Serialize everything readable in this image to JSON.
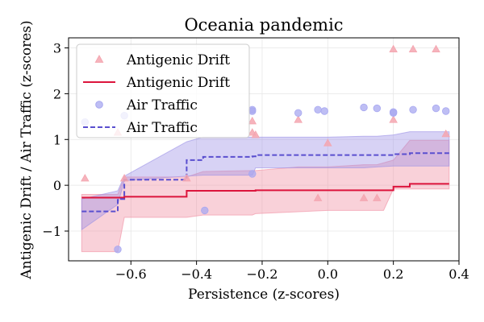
{
  "chart_data": {
    "type": "line",
    "title": "Oceania pandemic",
    "xlabel": "Persistence (z-scores)",
    "ylabel": "Antigenic Drift / Air Traffic (z-scores)",
    "xlim": [
      -0.79,
      0.4
    ],
    "ylim": [
      -1.65,
      3.22
    ],
    "xticks": [
      -0.6,
      -0.4,
      -0.2,
      0.0,
      0.2,
      0.4
    ],
    "xtick_labels": [
      "−0.6",
      "−0.4",
      "−0.2",
      "0.0",
      "0.2",
      "0.4"
    ],
    "yticks": [
      -1,
      0,
      1,
      2,
      3
    ],
    "ytick_labels": [
      "−1",
      "0",
      "1",
      "2",
      "3"
    ],
    "grid": true,
    "legend_position": "top-left",
    "legend": [
      {
        "label": "Antigenic Drift",
        "kind": "scatter-triangle",
        "series": "drift"
      },
      {
        "label": "Antigenic Drift",
        "kind": "line-solid",
        "series": "drift"
      },
      {
        "label": "Air Traffic",
        "kind": "scatter-circle",
        "series": "air"
      },
      {
        "label": "Air Traffic",
        "kind": "line-dashed",
        "series": "air"
      }
    ],
    "series": [
      {
        "name": "Antigenic Drift",
        "key": "drift",
        "color": "#dc143c",
        "marker_color": "#f4a6b0",
        "band_color": "#f08ca0",
        "points": [
          [
            -0.74,
            0.15
          ],
          [
            -0.64,
            1.15
          ],
          [
            -0.62,
            0.15
          ],
          [
            -0.43,
            0.15
          ],
          [
            -0.23,
            1.4
          ],
          [
            -0.23,
            1.15
          ],
          [
            -0.22,
            1.1
          ],
          [
            -0.09,
            1.43
          ],
          [
            -0.03,
            -0.28
          ],
          [
            0.0,
            0.92
          ],
          [
            0.11,
            -0.28
          ],
          [
            0.15,
            -0.28
          ],
          [
            0.2,
            2.97
          ],
          [
            0.2,
            1.43
          ],
          [
            0.26,
            2.97
          ],
          [
            0.33,
            2.97
          ],
          [
            0.36,
            1.12
          ]
        ],
        "fit": [
          [
            -0.75,
            -0.27
          ],
          [
            -0.64,
            -0.27
          ],
          [
            -0.62,
            -0.25
          ],
          [
            -0.43,
            -0.12
          ],
          [
            -0.38,
            -0.12
          ],
          [
            -0.23,
            -0.12
          ],
          [
            -0.22,
            -0.11
          ],
          [
            0.17,
            -0.11
          ],
          [
            0.2,
            -0.03
          ],
          [
            0.25,
            0.03
          ],
          [
            0.37,
            0.03
          ]
        ],
        "band_upper": [
          [
            -0.75,
            -0.2
          ],
          [
            -0.64,
            -0.2
          ],
          [
            -0.62,
            0.18
          ],
          [
            -0.43,
            0.18
          ],
          [
            -0.38,
            0.3
          ],
          [
            -0.23,
            0.32
          ],
          [
            -0.22,
            0.32
          ],
          [
            -0.09,
            0.4
          ],
          [
            0.0,
            0.4
          ],
          [
            0.11,
            0.45
          ],
          [
            0.15,
            0.45
          ],
          [
            0.2,
            0.55
          ],
          [
            0.25,
            0.98
          ],
          [
            0.37,
            0.98
          ]
        ],
        "band_lower": [
          [
            -0.75,
            -1.45
          ],
          [
            -0.64,
            -1.45
          ],
          [
            -0.62,
            -0.7
          ],
          [
            -0.43,
            -0.7
          ],
          [
            -0.38,
            -0.65
          ],
          [
            -0.23,
            -0.65
          ],
          [
            -0.22,
            -0.62
          ],
          [
            0.0,
            -0.55
          ],
          [
            0.17,
            -0.55
          ],
          [
            0.2,
            -0.08
          ],
          [
            0.37,
            -0.08
          ]
        ]
      },
      {
        "name": "Air Traffic",
        "key": "air",
        "color": "#5a4fcf",
        "marker_color": "#a8a8f0",
        "band_color": "#9a8fe6",
        "points": [
          [
            -0.74,
            1.38
          ],
          [
            -0.62,
            1.52
          ],
          [
            -0.64,
            -1.4
          ],
          [
            -0.375,
            -0.55
          ],
          [
            -0.23,
            1.65
          ],
          [
            -0.23,
            1.62
          ],
          [
            -0.23,
            0.25
          ],
          [
            -0.09,
            1.58
          ],
          [
            -0.03,
            1.65
          ],
          [
            -0.01,
            1.62
          ],
          [
            0.11,
            1.7
          ],
          [
            0.15,
            1.68
          ],
          [
            0.2,
            1.6
          ],
          [
            0.2,
            1.58
          ],
          [
            0.26,
            1.65
          ],
          [
            0.33,
            1.68
          ],
          [
            0.36,
            1.62
          ]
        ],
        "fit": [
          [
            -0.75,
            -0.57
          ],
          [
            -0.64,
            -0.3
          ],
          [
            -0.62,
            0.12
          ],
          [
            -0.43,
            0.55
          ],
          [
            -0.38,
            0.62
          ],
          [
            -0.23,
            0.63
          ],
          [
            -0.22,
            0.66
          ],
          [
            0.17,
            0.66
          ],
          [
            0.2,
            0.68
          ],
          [
            0.25,
            0.7
          ],
          [
            0.37,
            0.7
          ]
        ],
        "band_upper": [
          [
            -0.75,
            -0.3
          ],
          [
            -0.64,
            -0.12
          ],
          [
            -0.62,
            0.2
          ],
          [
            -0.43,
            0.95
          ],
          [
            -0.38,
            1.05
          ],
          [
            -0.23,
            1.05
          ],
          [
            -0.22,
            1.05
          ],
          [
            0.0,
            1.05
          ],
          [
            0.11,
            1.07
          ],
          [
            0.15,
            1.07
          ],
          [
            0.2,
            1.1
          ],
          [
            0.25,
            1.17
          ],
          [
            0.37,
            1.17
          ]
        ],
        "band_lower": [
          [
            -0.75,
            -0.97
          ],
          [
            -0.64,
            -0.42
          ],
          [
            -0.62,
            0.1
          ],
          [
            -0.43,
            0.2
          ],
          [
            -0.38,
            0.22
          ],
          [
            -0.23,
            0.22
          ],
          [
            -0.22,
            0.38
          ],
          [
            0.0,
            0.38
          ],
          [
            0.11,
            0.38
          ],
          [
            0.15,
            0.4
          ],
          [
            0.2,
            0.42
          ],
          [
            0.25,
            0.42
          ],
          [
            0.37,
            0.42
          ]
        ]
      }
    ]
  }
}
